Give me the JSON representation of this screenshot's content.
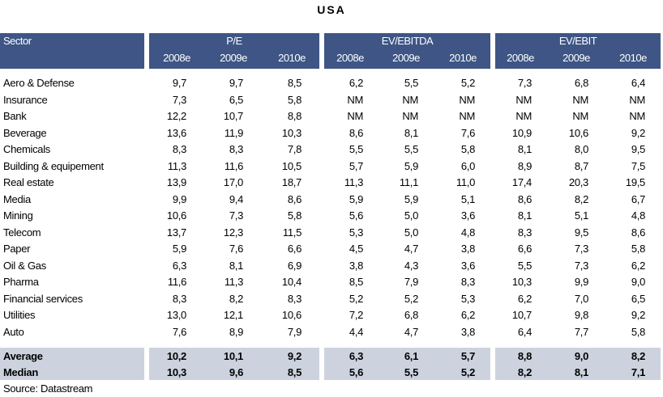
{
  "title": "USA",
  "header": {
    "sector_label": "Sector",
    "groups": [
      {
        "name": "P/E",
        "years": [
          "2008e",
          "2009e",
          "2010e"
        ]
      },
      {
        "name": "EV/EBITDA",
        "years": [
          "2008e",
          "2009e",
          "2010e"
        ]
      },
      {
        "name": "EV/EBIT",
        "years": [
          "2008e",
          "2009e",
          "2010e"
        ]
      }
    ]
  },
  "rows": [
    {
      "sector": "Aero & Defense",
      "values": [
        "9,7",
        "9,7",
        "8,5",
        "6,2",
        "5,5",
        "5,2",
        "7,3",
        "6,8",
        "6,4"
      ]
    },
    {
      "sector": "Insurance",
      "values": [
        "7,3",
        "6,5",
        "5,8",
        "NM",
        "NM",
        "NM",
        "NM",
        "NM",
        "NM"
      ]
    },
    {
      "sector": "Bank",
      "values": [
        "12,2",
        "10,7",
        "8,8",
        "NM",
        "NM",
        "NM",
        "NM",
        "NM",
        "NM"
      ]
    },
    {
      "sector": "Beverage",
      "values": [
        "13,6",
        "11,9",
        "10,3",
        "8,6",
        "8,1",
        "7,6",
        "10,9",
        "10,6",
        "9,2"
      ]
    },
    {
      "sector": "Chemicals",
      "values": [
        "8,3",
        "8,3",
        "7,8",
        "5,5",
        "5,5",
        "5,8",
        "8,1",
        "8,0",
        "9,5"
      ]
    },
    {
      "sector": "Building & equipement",
      "values": [
        "11,3",
        "11,6",
        "10,5",
        "5,7",
        "5,9",
        "6,0",
        "8,9",
        "8,7",
        "7,5"
      ]
    },
    {
      "sector": "Real estate",
      "values": [
        "13,9",
        "17,0",
        "18,7",
        "11,3",
        "11,1",
        "11,0",
        "17,4",
        "20,3",
        "19,5"
      ]
    },
    {
      "sector": "Media",
      "values": [
        "9,9",
        "9,4",
        "8,6",
        "5,9",
        "5,9",
        "5,1",
        "8,6",
        "8,2",
        "6,7"
      ]
    },
    {
      "sector": "Mining",
      "values": [
        "10,6",
        "7,3",
        "5,8",
        "5,6",
        "5,0",
        "3,6",
        "8,1",
        "5,1",
        "4,8"
      ]
    },
    {
      "sector": "Telecom",
      "values": [
        "13,7",
        "12,3",
        "11,5",
        "5,3",
        "5,0",
        "4,8",
        "8,3",
        "9,5",
        "8,6"
      ]
    },
    {
      "sector": "Paper",
      "values": [
        "5,9",
        "7,6",
        "6,6",
        "4,5",
        "4,7",
        "3,8",
        "6,6",
        "7,3",
        "5,8"
      ]
    },
    {
      "sector": "Oil & Gas",
      "values": [
        "6,3",
        "8,1",
        "6,9",
        "3,8",
        "4,3",
        "3,6",
        "5,5",
        "7,3",
        "6,2"
      ]
    },
    {
      "sector": "Pharma",
      "values": [
        "11,6",
        "11,3",
        "10,4",
        "8,5",
        "7,9",
        "8,3",
        "10,3",
        "9,9",
        "9,0"
      ]
    },
    {
      "sector": "Financial services",
      "values": [
        "8,3",
        "8,2",
        "8,3",
        "5,2",
        "5,2",
        "5,3",
        "6,2",
        "7,0",
        "6,5"
      ]
    },
    {
      "sector": "Utilities",
      "values": [
        "13,0",
        "12,1",
        "10,6",
        "7,2",
        "6,8",
        "6,2",
        "10,7",
        "9,8",
        "9,2"
      ]
    },
    {
      "sector": "Auto",
      "values": [
        "7,6",
        "8,9",
        "7,9",
        "4,4",
        "4,7",
        "3,8",
        "6,4",
        "7,7",
        "5,8"
      ]
    }
  ],
  "summary": [
    {
      "sector": "Average",
      "values": [
        "10,2",
        "10,1",
        "9,2",
        "6,3",
        "6,1",
        "5,7",
        "8,8",
        "9,0",
        "8,2"
      ]
    },
    {
      "sector": "Median",
      "values": [
        "10,3",
        "9,6",
        "8,5",
        "5,6",
        "5,5",
        "5,2",
        "8,2",
        "8,1",
        "7,1"
      ]
    }
  ],
  "source": "Source: Datastream",
  "colors": {
    "header_bg": "#3e5585",
    "footer_bg": "#cdd3de"
  }
}
